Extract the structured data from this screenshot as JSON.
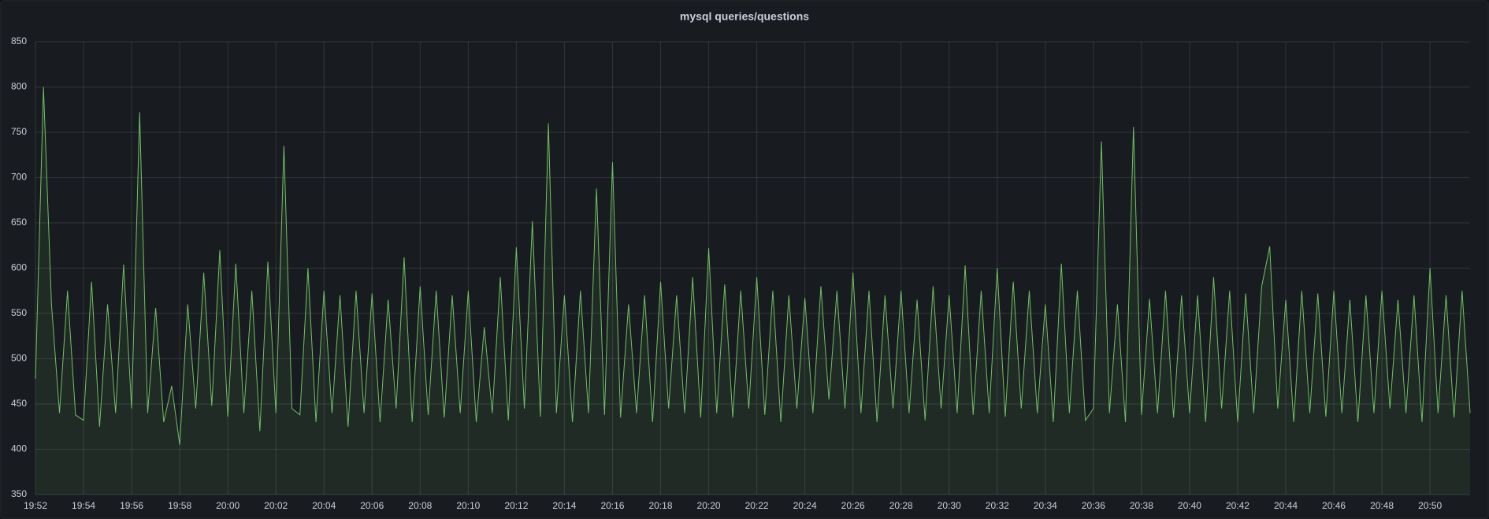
{
  "chart_data": {
    "type": "line",
    "title": "mysql queries/questions",
    "categories": [
      "19:52",
      null,
      null,
      null,
      null,
      null,
      "19:54",
      null,
      null,
      null,
      null,
      null,
      "19:56",
      null,
      null,
      null,
      null,
      null,
      "19:58",
      null,
      null,
      null,
      null,
      null,
      "20:00",
      null,
      null,
      null,
      null,
      null,
      "20:02",
      null,
      null,
      null,
      null,
      null,
      "20:04",
      null,
      null,
      null,
      null,
      null,
      "20:06",
      null,
      null,
      null,
      null,
      null,
      "20:08",
      null,
      null,
      null,
      null,
      null,
      "20:10",
      null,
      null,
      null,
      null,
      null,
      "20:12",
      null,
      null,
      null,
      null,
      null,
      "20:14",
      null,
      null,
      null,
      null,
      null,
      "20:16",
      null,
      null,
      null,
      null,
      null,
      "20:18",
      null,
      null,
      null,
      null,
      null,
      "20:20",
      null,
      null,
      null,
      null,
      null,
      "20:22",
      null,
      null,
      null,
      null,
      null,
      "20:24",
      null,
      null,
      null,
      null,
      null,
      "20:26",
      null,
      null,
      null,
      null,
      null,
      "20:28",
      null,
      null,
      null,
      null,
      null,
      "20:30",
      null,
      null,
      null,
      null,
      null,
      "20:32",
      null,
      null,
      null,
      null,
      null,
      "20:34",
      null,
      null,
      null,
      null,
      null,
      "20:36",
      null,
      null,
      null,
      null,
      null,
      "20:38",
      null,
      null,
      null,
      null,
      null,
      "20:40",
      null,
      null,
      null,
      null,
      null,
      "20:42",
      null,
      null,
      null,
      null,
      null,
      "20:44",
      null,
      null,
      null,
      null,
      null,
      "20:46",
      null,
      null,
      null,
      null,
      null,
      "20:48",
      null,
      null,
      null,
      null,
      null,
      "20:50",
      null,
      null,
      null,
      null,
      null
    ],
    "series": [
      {
        "color": "#73bf69",
        "values": [
          478,
          800,
          560,
          440,
          575,
          438,
          432,
          585,
          425,
          560,
          440,
          604,
          445,
          772,
          440,
          556,
          430,
          470,
          405,
          560,
          445,
          595,
          448,
          620,
          436,
          605,
          440,
          575,
          420,
          607,
          440,
          735,
          445,
          438,
          600,
          430,
          575,
          440,
          570,
          425,
          575,
          440,
          572,
          430,
          565,
          445,
          612,
          430,
          580,
          438,
          575,
          435,
          570,
          440,
          575,
          430,
          535,
          440,
          590,
          432,
          623,
          445,
          652,
          436,
          760,
          440,
          570,
          430,
          575,
          440,
          688,
          438,
          717,
          435,
          560,
          440,
          570,
          430,
          585,
          445,
          570,
          440,
          590,
          435,
          622,
          440,
          582,
          435,
          575,
          445,
          590,
          438,
          575,
          430,
          570,
          445,
          567,
          440,
          580,
          455,
          575,
          445,
          595,
          440,
          575,
          430,
          570,
          445,
          575,
          440,
          565,
          432,
          580,
          445,
          570,
          440,
          603,
          438,
          575,
          440,
          600,
          436,
          585,
          445,
          575,
          440,
          560,
          430,
          605,
          440,
          575,
          432,
          445,
          740,
          440,
          560,
          430,
          756,
          438,
          566,
          440,
          575,
          435,
          570,
          440,
          570,
          430,
          590,
          445,
          575,
          430,
          572,
          440,
          580,
          624,
          445,
          565,
          430,
          575,
          440,
          572,
          436,
          575,
          440,
          565,
          430,
          570,
          440,
          575,
          445,
          565,
          440,
          570,
          430,
          600,
          440,
          570,
          435,
          575,
          440
        ]
      }
    ],
    "ylim": [
      350,
      850
    ],
    "yticks": [
      350,
      400,
      450,
      500,
      550,
      600,
      650,
      700,
      750,
      800,
      850
    ],
    "grid": true
  }
}
